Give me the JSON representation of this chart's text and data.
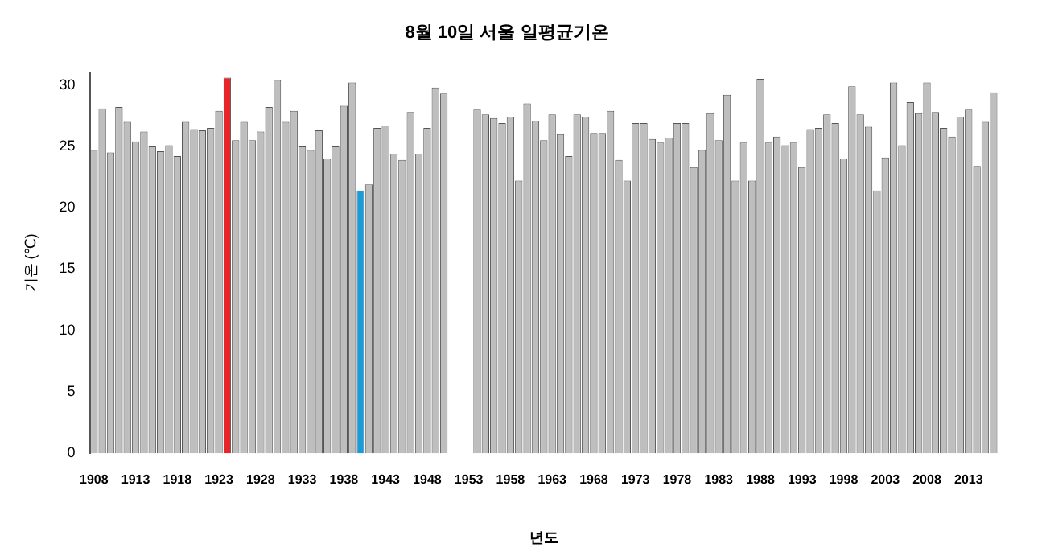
{
  "chart_data": {
    "type": "bar",
    "title": "8월 10일 서울 일평균기온",
    "xlabel": "년도",
    "ylabel": "기온 (℃)",
    "categories": [
      "1908",
      null,
      null,
      null,
      null,
      "1913",
      null,
      null,
      null,
      null,
      "1918",
      null,
      null,
      null,
      null,
      "1923",
      null,
      null,
      null,
      null,
      "1928",
      null,
      null,
      null,
      null,
      "1933",
      null,
      null,
      null,
      null,
      "1938",
      null,
      null,
      null,
      null,
      "1943",
      null,
      null,
      null,
      null,
      "1948",
      null,
      null,
      null,
      null,
      "1953",
      null,
      null,
      null,
      null,
      "1958",
      null,
      null,
      null,
      null,
      "1963",
      null,
      null,
      null,
      null,
      "1968",
      null,
      null,
      null,
      null,
      "1973",
      null,
      null,
      null,
      null,
      "1978",
      null,
      null,
      null,
      null,
      "1983",
      null,
      null,
      null,
      null,
      "1988",
      null,
      null,
      null,
      null,
      "1993",
      null,
      null,
      null,
      null,
      "1998",
      null,
      null,
      null,
      null,
      "2003",
      null,
      null,
      null,
      null,
      "2008",
      null,
      null,
      null,
      null,
      "2013",
      null,
      null,
      null
    ],
    "values": [
      24.7,
      28.1,
      24.5,
      28.2,
      27.0,
      25.4,
      26.2,
      25.0,
      24.6,
      25.1,
      24.2,
      27.0,
      26.4,
      26.3,
      26.5,
      27.9,
      30.6,
      25.5,
      27.0,
      25.5,
      26.2,
      28.2,
      30.4,
      27.0,
      27.9,
      25.0,
      24.7,
      26.3,
      24.0,
      25.0,
      28.3,
      30.2,
      21.4,
      21.9,
      26.5,
      26.7,
      24.4,
      23.9,
      27.8,
      24.4,
      26.5,
      29.8,
      29.3,
      null,
      null,
      null,
      28.0,
      27.6,
      27.3,
      26.9,
      27.4,
      22.2,
      28.5,
      27.1,
      25.5,
      27.6,
      26.0,
      24.2,
      27.6,
      27.4,
      26.1,
      26.1,
      27.9,
      23.9,
      22.2,
      26.9,
      26.9,
      25.6,
      25.3,
      25.7,
      26.9,
      26.9,
      23.3,
      24.7,
      27.7,
      25.5,
      29.2,
      22.2,
      25.3,
      22.2,
      30.5,
      25.3,
      25.8,
      25.1,
      25.3,
      23.3,
      26.4,
      26.5,
      27.6,
      26.9,
      24.0,
      29.9,
      27.6,
      26.6,
      21.4,
      24.1,
      30.2,
      25.1,
      28.6,
      27.7,
      30.2,
      27.8,
      26.5,
      25.8,
      27.4,
      28.0,
      23.4,
      27.0,
      29.4
    ],
    "colors": [
      "#bebebe",
      "#bebebe",
      "#bebebe",
      "#bebebe",
      "#bebebe",
      "#bebebe",
      "#bebebe",
      "#bebebe",
      "#bebebe",
      "#bebebe",
      "#bebebe",
      "#bebebe",
      "#bebebe",
      "#bebebe",
      "#bebebe",
      "#bebebe",
      "#e8262a",
      "#bebebe",
      "#bebebe",
      "#bebebe",
      "#bebebe",
      "#bebebe",
      "#bebebe",
      "#bebebe",
      "#bebebe",
      "#bebebe",
      "#bebebe",
      "#bebebe",
      "#bebebe",
      "#bebebe",
      "#bebebe",
      "#bebebe",
      "#1a9ad6",
      "#bebebe",
      "#bebebe",
      "#bebebe",
      "#bebebe",
      "#bebebe",
      "#bebebe",
      "#bebebe",
      "#bebebe",
      "#bebebe",
      "#bebebe",
      "#bebebe",
      "#bebebe",
      "#bebebe",
      "#bebebe",
      "#bebebe",
      "#bebebe",
      "#bebebe",
      "#bebebe",
      "#bebebe",
      "#bebebe",
      "#bebebe",
      "#bebebe",
      "#bebebe",
      "#bebebe",
      "#bebebe",
      "#bebebe",
      "#bebebe",
      "#bebebe",
      "#bebebe",
      "#bebebe",
      "#bebebe",
      "#bebebe",
      "#bebebe",
      "#bebebe",
      "#bebebe",
      "#bebebe",
      "#bebebe",
      "#bebebe",
      "#bebebe",
      "#bebebe",
      "#bebebe",
      "#bebebe",
      "#bebebe",
      "#bebebe",
      "#bebebe",
      "#bebebe",
      "#bebebe",
      "#bebebe",
      "#bebebe",
      "#bebebe",
      "#bebebe",
      "#bebebe",
      "#bebebe",
      "#bebebe",
      "#bebebe",
      "#bebebe",
      "#bebebe",
      "#bebebe",
      "#bebebe",
      "#bebebe",
      "#bebebe",
      "#bebebe",
      "#bebebe",
      "#bebebe",
      "#bebebe",
      "#bebebe",
      "#bebebe",
      "#bebebe",
      "#bebebe",
      "#bebebe",
      "#bebebe",
      "#bebebe",
      "#bebebe",
      "#bebebe",
      "#bebebe",
      "#bebebe"
    ],
    "ylim": [
      0,
      31
    ],
    "yticks": [
      0,
      5,
      10,
      15,
      20,
      25,
      30
    ],
    "grid": false,
    "legend": false
  }
}
